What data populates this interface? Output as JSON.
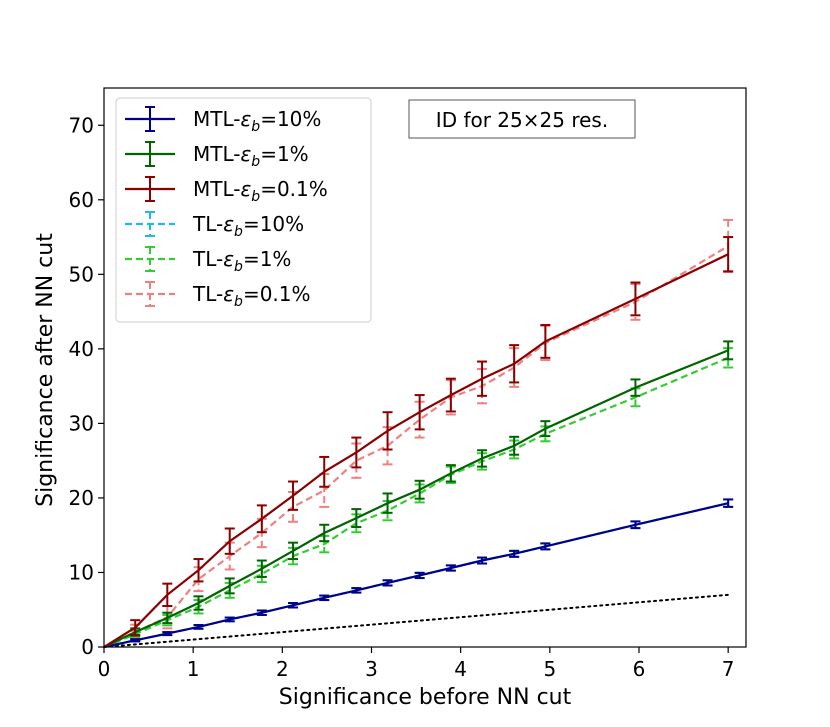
{
  "chart_data": {
    "type": "line",
    "xlabel": "Significance before NN cut",
    "ylabel": "Significance after NN cut",
    "xlim": [
      0,
      7.2
    ],
    "ylim": [
      0,
      75
    ],
    "xticks": [
      0,
      1,
      2,
      3,
      4,
      5,
      6,
      7
    ],
    "yticks": [
      0,
      10,
      20,
      30,
      40,
      50,
      60,
      70
    ],
    "annotation": "ID for 25×25 res.",
    "x": [
      0,
      0.35,
      0.71,
      1.06,
      1.41,
      1.77,
      2.12,
      2.47,
      2.83,
      3.18,
      3.54,
      3.89,
      4.24,
      4.6,
      4.95,
      5.96,
      7.0
    ],
    "series": [
      {
        "name": "MTL-",
        "sub": "b",
        "pct": "=10%",
        "color": "#00008b",
        "dash": "solid",
        "values": [
          0,
          0.9,
          1.8,
          2.7,
          3.7,
          4.6,
          5.6,
          6.6,
          7.6,
          8.6,
          9.6,
          10.6,
          11.6,
          12.5,
          13.5,
          16.4,
          19.3
        ],
        "errors": [
          0,
          0.15,
          0.2,
          0.25,
          0.25,
          0.3,
          0.3,
          0.3,
          0.3,
          0.35,
          0.35,
          0.35,
          0.4,
          0.4,
          0.4,
          0.45,
          0.5
        ]
      },
      {
        "name": "MTL-",
        "sub": "b",
        "pct": "=1%",
        "color": "#006400",
        "dash": "solid",
        "values": [
          0,
          2.0,
          3.9,
          5.9,
          8.2,
          10.5,
          12.9,
          15.3,
          17.3,
          19.3,
          21.1,
          23.3,
          25.3,
          27.0,
          29.3,
          34.8,
          39.8
        ],
        "errors": [
          0,
          0.5,
          0.7,
          0.9,
          1.0,
          1.1,
          1.1,
          1.1,
          1.2,
          1.3,
          1.2,
          1.1,
          1.1,
          1.2,
          1.0,
          1.1,
          1.2
        ]
      },
      {
        "name": "MTL-",
        "sub": "b",
        "pct": "=0.1%",
        "color": "#8b0000",
        "dash": "solid",
        "values": [
          0,
          2.6,
          7.0,
          10.3,
          14.2,
          17.2,
          20.3,
          23.5,
          26.1,
          29.0,
          31.5,
          33.8,
          36.0,
          38.0,
          41.0,
          46.7,
          52.7
        ],
        "errors": [
          0,
          1.0,
          1.5,
          1.5,
          1.7,
          1.8,
          1.9,
          2.0,
          2.0,
          2.5,
          2.3,
          2.2,
          2.3,
          2.5,
          2.2,
          2.2,
          2.3
        ]
      },
      {
        "name": "TL-",
        "sub": "b",
        "pct": "=10%",
        "color": "#20b8e8",
        "dash": "dashed",
        "values": [
          0,
          0.9,
          1.8,
          2.7,
          3.7,
          4.6,
          5.6,
          6.6,
          7.6,
          8.6,
          9.6,
          10.6,
          11.6,
          12.5,
          13.5,
          16.4,
          19.3
        ],
        "errors": [
          0,
          0.15,
          0.2,
          0.25,
          0.25,
          0.3,
          0.3,
          0.3,
          0.3,
          0.35,
          0.35,
          0.35,
          0.4,
          0.4,
          0.4,
          0.45,
          0.5
        ]
      },
      {
        "name": "TL-",
        "sub": "b",
        "pct": "=1%",
        "color": "#32cd32",
        "dash": "dashed",
        "values": [
          0,
          1.7,
          3.6,
          5.4,
          7.6,
          9.8,
          12.2,
          13.8,
          16.6,
          18.3,
          20.6,
          23.1,
          24.9,
          26.5,
          28.6,
          33.5,
          38.8
        ],
        "errors": [
          0,
          0.5,
          0.7,
          0.9,
          1.0,
          1.1,
          1.1,
          1.1,
          1.2,
          1.3,
          1.2,
          1.1,
          1.1,
          1.2,
          1.0,
          1.2,
          1.3
        ]
      },
      {
        "name": "TL-",
        "sub": "b",
        "pct": "=0.1%",
        "color": "#f08080",
        "dash": "dashed",
        "values": [
          0,
          2.0,
          4.0,
          9.1,
          12.2,
          15.3,
          18.8,
          21.0,
          25.0,
          27.0,
          30.5,
          33.5,
          35.0,
          37.5,
          40.8,
          46.3,
          53.8
        ],
        "errors": [
          0,
          1.0,
          1.5,
          1.6,
          1.8,
          1.9,
          2.0,
          2.2,
          2.3,
          2.5,
          2.4,
          2.3,
          2.3,
          2.6,
          2.3,
          2.4,
          3.5
        ]
      }
    ],
    "reference_line": {
      "x": [
        0,
        7
      ],
      "y": [
        0,
        7
      ],
      "style": "dotted",
      "color": "#000000"
    }
  }
}
